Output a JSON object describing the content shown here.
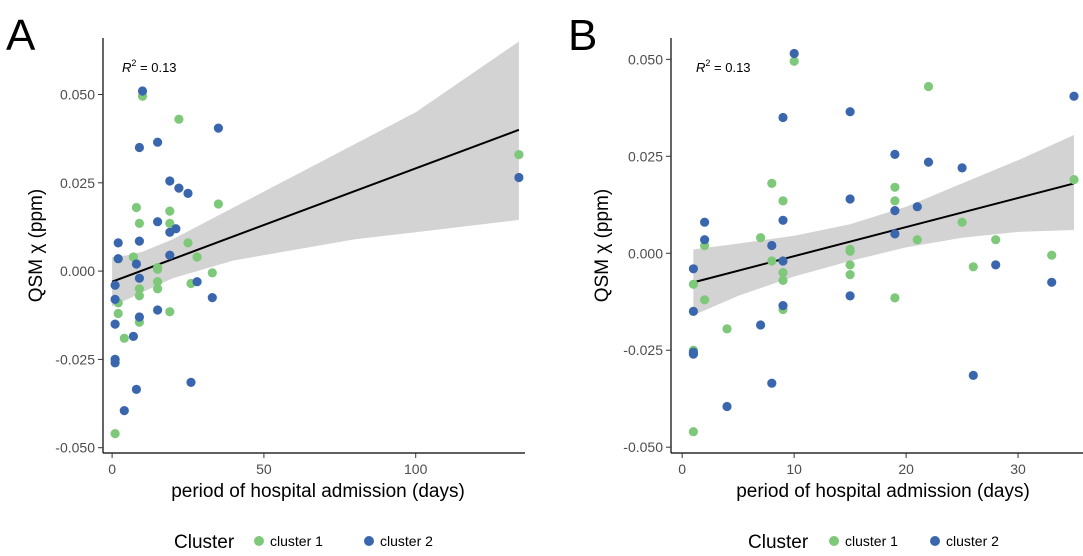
{
  "chart_data": [
    {
      "panel": "A",
      "type": "scatter",
      "annotation": {
        "prefix": "R",
        "sup": "2",
        "value": " = 0.13"
      },
      "xlabel": "period of hospital admission (days)",
      "ylabel": "QSM χ (ppm)",
      "xlim": [
        -3,
        136
      ],
      "ylim": [
        -0.0515,
        0.066
      ],
      "xticks": [
        0,
        50,
        100
      ],
      "yticks": [
        -0.05,
        -0.025,
        0.0,
        0.025,
        0.05
      ],
      "ytick_labels": [
        "-0.050",
        "-0.025",
        "0.000",
        "0.025",
        "0.050"
      ],
      "grid": false,
      "fit": {
        "x": [
          0,
          134
        ],
        "y": [
          -0.003,
          0.04
        ]
      },
      "band": {
        "x": [
          0,
          5,
          10,
          20,
          40,
          60,
          80,
          100,
          134
        ],
        "upper": [
          0.004,
          0.0045,
          0.0055,
          0.009,
          0.018,
          0.027,
          0.036,
          0.045,
          0.065
        ],
        "lower": [
          -0.01,
          -0.008,
          -0.006,
          -0.002,
          0.003,
          0.006,
          0.009,
          0.011,
          0.0145
        ]
      },
      "series": [
        {
          "name": "cluster 1",
          "color": "#7ec87a",
          "points": [
            [
              1,
              -0.046
            ],
            [
              1,
              -0.025
            ],
            [
              2,
              -0.012
            ],
            [
              2,
              0.0035
            ],
            [
              2,
              -0.009
            ],
            [
              4,
              -0.019
            ],
            [
              7,
              0.004
            ],
            [
              8,
              0.018
            ],
            [
              9,
              -0.007
            ],
            [
              9,
              -0.005
            ],
            [
              9,
              -0.0145
            ],
            [
              9,
              0.0135
            ],
            [
              10,
              0.0495
            ],
            [
              15,
              -0.005
            ],
            [
              15,
              0.0005
            ],
            [
              15,
              -0.003
            ],
            [
              15,
              0.001
            ],
            [
              19,
              0.017
            ],
            [
              19,
              0.0135
            ],
            [
              19,
              -0.0115
            ],
            [
              22,
              0.043
            ],
            [
              25,
              0.008
            ],
            [
              26,
              -0.0035
            ],
            [
              28,
              0.004
            ],
            [
              33,
              -0.0005
            ],
            [
              35,
              0.019
            ],
            [
              134,
              0.033
            ]
          ]
        },
        {
          "name": "cluster 2",
          "color": "#3a66ad",
          "points": [
            [
              1,
              -0.026
            ],
            [
              1,
              -0.025
            ],
            [
              1,
              -0.015
            ],
            [
              1,
              -0.008
            ],
            [
              1,
              -0.004
            ],
            [
              2,
              0.0035
            ],
            [
              2,
              0.008
            ],
            [
              4,
              -0.0395
            ],
            [
              7,
              -0.0185
            ],
            [
              8,
              -0.0335
            ],
            [
              8,
              0.002
            ],
            [
              9,
              0.0085
            ],
            [
              9,
              0.035
            ],
            [
              9,
              -0.002
            ],
            [
              9,
              -0.013
            ],
            [
              10,
              0.051
            ],
            [
              15,
              0.0365
            ],
            [
              15,
              0.014
            ],
            [
              15,
              -0.011
            ],
            [
              19,
              0.0255
            ],
            [
              19,
              0.011
            ],
            [
              19,
              0.0045
            ],
            [
              21,
              0.012
            ],
            [
              22,
              0.0235
            ],
            [
              25,
              0.022
            ],
            [
              26,
              -0.0315
            ],
            [
              28,
              -0.003
            ],
            [
              33,
              -0.0075
            ],
            [
              35,
              0.0405
            ],
            [
              134,
              0.0265
            ]
          ]
        }
      ]
    },
    {
      "panel": "B",
      "type": "scatter",
      "annotation": {
        "prefix": "R",
        "sup": "2",
        "value": " = 0.13"
      },
      "xlabel": "period of hospital admission (days)",
      "ylabel": "QSM χ (ppm)",
      "xlim": [
        -1,
        35.8
      ],
      "ylim": [
        -0.0515,
        0.0555
      ],
      "xticks": [
        0,
        10,
        20,
        30
      ],
      "yticks": [
        -0.05,
        -0.025,
        0.0,
        0.025,
        0.05
      ],
      "ytick_labels": [
        "-0.050",
        "-0.025",
        "0.000",
        "0.025",
        "0.050"
      ],
      "grid": false,
      "fit": {
        "x": [
          1,
          35
        ],
        "y": [
          -0.0075,
          0.018
        ]
      },
      "band": {
        "x": [
          1,
          5,
          10,
          15,
          20,
          25,
          30,
          35
        ],
        "upper": [
          0.001,
          0.0025,
          0.0045,
          0.0075,
          0.012,
          0.018,
          0.024,
          0.0305
        ],
        "lower": [
          -0.016,
          -0.011,
          -0.006,
          -0.002,
          0.0015,
          0.004,
          0.0055,
          0.006
        ]
      },
      "series": [
        {
          "name": "cluster 1",
          "color": "#7ec87a",
          "points": [
            [
              1,
              -0.046
            ],
            [
              1,
              -0.025
            ],
            [
              1,
              -0.008
            ],
            [
              2,
              0.002
            ],
            [
              2,
              -0.012
            ],
            [
              4,
              -0.0195
            ],
            [
              7,
              0.004
            ],
            [
              8,
              0.018
            ],
            [
              8,
              -0.002
            ],
            [
              9,
              -0.0145
            ],
            [
              9,
              -0.007
            ],
            [
              9,
              -0.005
            ],
            [
              9,
              0.0135
            ],
            [
              10,
              0.0495
            ],
            [
              15,
              -0.0055
            ],
            [
              15,
              -0.003
            ],
            [
              15,
              0.0005
            ],
            [
              15,
              0.001
            ],
            [
              19,
              0.017
            ],
            [
              19,
              0.0135
            ],
            [
              19,
              -0.0115
            ],
            [
              21,
              0.0035
            ],
            [
              22,
              0.043
            ],
            [
              25,
              0.008
            ],
            [
              26,
              -0.0035
            ],
            [
              28,
              0.0035
            ],
            [
              33,
              -0.0005
            ],
            [
              35,
              0.019
            ]
          ]
        },
        {
          "name": "cluster 2",
          "color": "#3a66ad",
          "points": [
            [
              1,
              -0.026
            ],
            [
              1,
              -0.0255
            ],
            [
              1,
              -0.015
            ],
            [
              1,
              -0.004
            ],
            [
              2,
              0.0035
            ],
            [
              2,
              0.008
            ],
            [
              4,
              -0.0395
            ],
            [
              7,
              -0.0185
            ],
            [
              8,
              -0.0335
            ],
            [
              8,
              0.002
            ],
            [
              9,
              0.035
            ],
            [
              9,
              0.0085
            ],
            [
              9,
              -0.002
            ],
            [
              9,
              -0.0135
            ],
            [
              10,
              0.0515
            ],
            [
              15,
              0.0365
            ],
            [
              15,
              0.014
            ],
            [
              15,
              -0.011
            ],
            [
              19,
              0.0255
            ],
            [
              19,
              0.011
            ],
            [
              19,
              0.005
            ],
            [
              21,
              0.012
            ],
            [
              22,
              0.0235
            ],
            [
              25,
              0.022
            ],
            [
              26,
              -0.0315
            ],
            [
              28,
              -0.003
            ],
            [
              33,
              -0.0075
            ],
            [
              35,
              0.0405
            ]
          ]
        }
      ]
    }
  ],
  "legend": {
    "title": "Cluster",
    "items": [
      {
        "label": "cluster 1",
        "color": "#7ec87a"
      },
      {
        "label": "cluster 2",
        "color": "#3a66ad"
      }
    ]
  },
  "style": {
    "band_color": "#d3d3d3",
    "fit_color": "#000000"
  }
}
